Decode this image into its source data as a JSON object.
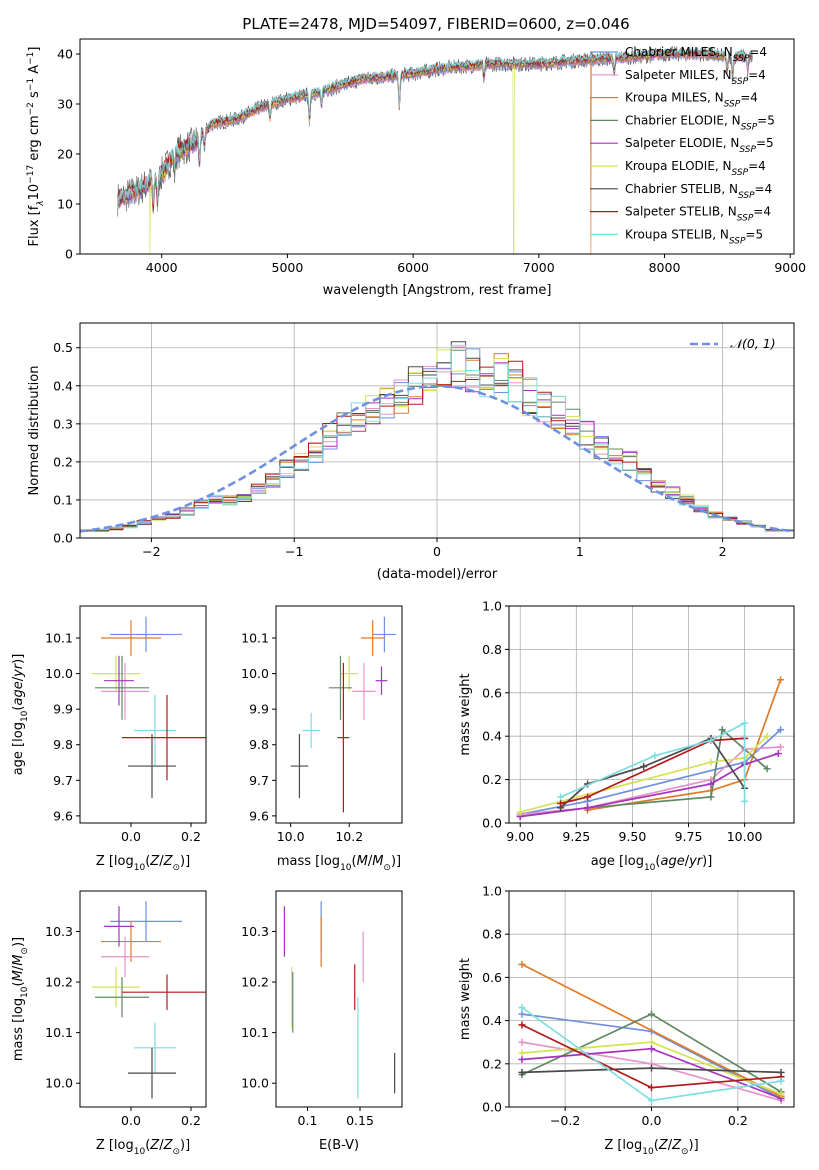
{
  "figure_title": "PLATE=2478, MJD=54097, FIBERID=0600, z=0.046",
  "legend": [
    {
      "label": "Chabrier MILES, N$_{SSP}$=4",
      "text": "Chabrier MILES, N",
      "n": "4",
      "color": "#6f8fe0"
    },
    {
      "label": "Salpeter MILES, N$_{SSP}$=4",
      "text": "Salpeter MILES, N",
      "n": "4",
      "color": "#e693c9"
    },
    {
      "label": "Kroupa MILES, N$_{SSP}$=4",
      "text": "Kroupa MILES, N",
      "n": "4",
      "color": "#e07b29"
    },
    {
      "label": "Chabrier ELODIE, N$_{SSP}$=5",
      "text": "Chabrier ELODIE, N",
      "n": "5",
      "color": "#5f8a63"
    },
    {
      "label": "Salpeter ELODIE, N$_{SSP}$=5",
      "text": "Salpeter ELODIE, N",
      "n": "5",
      "color": "#a632c0"
    },
    {
      "label": "Kroupa ELODIE, N$_{SSP}$=4",
      "text": "Kroupa ELODIE, N",
      "n": "4",
      "color": "#d4e255"
    },
    {
      "label": "Chabrier STELIB, N$_{SSP}$=4",
      "text": "Chabrier STELIB, N",
      "n": "4",
      "color": "#4a4a4a"
    },
    {
      "label": "Salpeter STELIB, N$_{SSP}$=4",
      "text": "Salpeter STELIB, N",
      "n": "4",
      "color": "#b21a1a"
    },
    {
      "label": "Kroupa STELIB, N$_{SSP}$=5",
      "text": "Kroupa STELIB, N",
      "n": "5",
      "color": "#7fdde0"
    }
  ],
  "legend_sub": "SSP",
  "normal_label": "𝒩(0, 1)",
  "chart_data": [
    {
      "id": "spectrum",
      "type": "line",
      "xlabel": "wavelength [Angstrom, rest frame]",
      "ylabel_parts": [
        "Flux [f",
        "λ",
        "10",
        "−17",
        " erg cm",
        "−2",
        " s",
        "−1",
        " A",
        "−1",
        "]"
      ],
      "xlim": [
        3350,
        9030
      ],
      "ylim": [
        0,
        43
      ],
      "xticks": [
        4000,
        5000,
        6000,
        7000,
        8000,
        9000
      ],
      "yticks": [
        0,
        10,
        20,
        30,
        40
      ],
      "continuum": [
        [
          3650,
          11
        ],
        [
          3800,
          12.5
        ],
        [
          3950,
          15
        ],
        [
          4000,
          16
        ],
        [
          4100,
          20
        ],
        [
          4250,
          22
        ],
        [
          4400,
          26
        ],
        [
          4600,
          27
        ],
        [
          4800,
          29.5
        ],
        [
          5000,
          31
        ],
        [
          5200,
          32
        ],
        [
          5400,
          33.5
        ],
        [
          5600,
          35
        ],
        [
          5800,
          35.5
        ],
        [
          6000,
          36
        ],
        [
          6200,
          37
        ],
        [
          6400,
          37.5
        ],
        [
          6600,
          38
        ],
        [
          6800,
          38
        ],
        [
          7000,
          38
        ],
        [
          7200,
          38.5
        ],
        [
          7500,
          39
        ],
        [
          7800,
          39.5
        ],
        [
          8000,
          40
        ],
        [
          8300,
          40
        ],
        [
          8500,
          39.5
        ],
        [
          8700,
          39.5
        ]
      ],
      "features": [
        {
          "x": 3933,
          "depth": 6
        },
        {
          "x": 3968,
          "depth": 6
        },
        {
          "x": 4102,
          "depth": 4
        },
        {
          "x": 4300,
          "depth": 6
        },
        {
          "x": 4340,
          "depth": 3
        },
        {
          "x": 4861,
          "depth": 3
        },
        {
          "x": 5175,
          "depth": 6
        },
        {
          "x": 5270,
          "depth": 3
        },
        {
          "x": 5890,
          "depth": 7
        },
        {
          "x": 6563,
          "depth": 3
        },
        {
          "x": 7600,
          "depth": 3
        },
        {
          "x": 8498,
          "depth": 3
        },
        {
          "x": 8542,
          "depth": 4
        },
        {
          "x": 8662,
          "depth": 3
        }
      ],
      "dropouts": [
        {
          "x": 3905,
          "model": "Kroupa ELODIE"
        },
        {
          "x": 6800,
          "model": "Kroupa ELODIE"
        },
        {
          "x": 7415,
          "model": "Kroupa MILES"
        }
      ]
    },
    {
      "id": "residuals",
      "type": "histogram",
      "xlabel": "(data-model)/error",
      "ylabel": "Normed distribution",
      "xlim": [
        -2.5,
        2.5
      ],
      "ylim": [
        0,
        0.565
      ],
      "xticks": [
        -2,
        -1,
        0,
        1,
        2
      ],
      "yticks": [
        0.0,
        0.1,
        0.2,
        0.3,
        0.4,
        0.5
      ],
      "bin_edges_start": -2.5,
      "bin_width": 0.1,
      "n_bins": 50,
      "heights_ref": [
        0.02,
        0.02,
        0.025,
        0.03,
        0.04,
        0.05,
        0.06,
        0.07,
        0.09,
        0.1,
        0.1,
        0.11,
        0.13,
        0.15,
        0.18,
        0.2,
        0.23,
        0.27,
        0.3,
        0.32,
        0.34,
        0.36,
        0.38,
        0.4,
        0.44,
        0.45,
        0.46,
        0.44,
        0.42,
        0.43,
        0.41,
        0.37,
        0.35,
        0.33,
        0.3,
        0.27,
        0.24,
        0.22,
        0.2,
        0.17,
        0.14,
        0.12,
        0.1,
        0.08,
        0.06,
        0.05,
        0.04,
        0.03,
        0.02,
        0.02
      ]
    },
    {
      "id": "age-vs-Z",
      "type": "errorbar",
      "xlabel": "Z [log10(Z/Z⊙)]",
      "ylabel": "age  [log10(age/yr)]",
      "xlim": [
        -0.17,
        0.25
      ],
      "ylim": [
        9.58,
        10.19
      ],
      "xticks": [
        0.0,
        0.2
      ],
      "yticks": [
        9.6,
        9.7,
        9.8,
        9.9,
        10.0,
        10.1
      ],
      "points": [
        {
          "model": "Chabrier MILES",
          "x": 0.05,
          "xerr": 0.12,
          "y": 10.11,
          "yerr": 0.05
        },
        {
          "model": "Kroupa MILES",
          "x": 0.0,
          "xerr": 0.1,
          "y": 10.1,
          "yerr": 0.05
        },
        {
          "model": "Salpeter MILES",
          "x": -0.02,
          "xerr": 0.08,
          "y": 9.95,
          "yerr": 0.08
        },
        {
          "model": "Kroupa ELODIE",
          "x": -0.05,
          "xerr": 0.08,
          "y": 10.0,
          "yerr": 0.05
        },
        {
          "model": "Chabrier ELODIE",
          "x": -0.03,
          "xerr": 0.09,
          "y": 9.96,
          "yerr": 0.09
        },
        {
          "model": "Salpeter ELODIE",
          "x": -0.04,
          "xerr": 0.05,
          "y": 9.98,
          "yerr": 0.07
        },
        {
          "model": "Kroupa STELIB",
          "x": 0.08,
          "xerr": 0.07,
          "y": 9.84,
          "yerr": 0.1
        },
        {
          "model": "Salpeter STELIB",
          "x": 0.12,
          "xerr": 0.15,
          "y": 9.82,
          "yerr": 0.12
        },
        {
          "model": "Chabrier STELIB",
          "x": 0.07,
          "xerr": 0.08,
          "y": 9.74,
          "yerr": 0.09
        }
      ]
    },
    {
      "id": "age-vs-mass",
      "type": "errorbar",
      "xlabel": "mass [log10(M/M⊙)]",
      "ylabel": "",
      "xlim": [
        9.95,
        10.38
      ],
      "ylim": [
        9.58,
        10.19
      ],
      "xticks": [
        10.0,
        10.2
      ],
      "yticks": [
        9.6,
        9.7,
        9.8,
        9.9,
        10.0,
        10.1
      ],
      "points": [
        {
          "model": "Chabrier MILES",
          "x": 10.32,
          "xerr": 0.04,
          "y": 10.11,
          "yerr": 0.05
        },
        {
          "model": "Kroupa MILES",
          "x": 10.28,
          "xerr": 0.04,
          "y": 10.1,
          "yerr": 0.05
        },
        {
          "model": "Salpeter MILES",
          "x": 10.25,
          "xerr": 0.04,
          "y": 9.95,
          "yerr": 0.08
        },
        {
          "model": "Kroupa ELODIE",
          "x": 10.2,
          "xerr": 0.03,
          "y": 10.0,
          "yerr": 0.05
        },
        {
          "model": "Chabrier ELODIE",
          "x": 10.17,
          "xerr": 0.04,
          "y": 9.96,
          "yerr": 0.09
        },
        {
          "model": "Salpeter ELODIE",
          "x": 10.31,
          "xerr": 0.02,
          "y": 9.98,
          "yerr": 0.04
        },
        {
          "model": "Kroupa STELIB",
          "x": 10.07,
          "xerr": 0.03,
          "y": 9.84,
          "yerr": 0.05
        },
        {
          "model": "Salpeter STELIB",
          "x": 10.18,
          "xerr": 0.02,
          "y": 9.82,
          "yerr": 0.21
        },
        {
          "model": "Chabrier STELIB",
          "x": 10.03,
          "xerr": 0.03,
          "y": 9.74,
          "yerr": 0.09
        }
      ]
    },
    {
      "id": "mass-weight-vs-age",
      "type": "line",
      "xlabel": "age  [log10(age/yr)]",
      "ylabel": "mass weight",
      "xlim": [
        8.95,
        10.22
      ],
      "ylim": [
        0,
        1.0
      ],
      "xticks": [
        9.0,
        9.25,
        9.5,
        9.75,
        10.0
      ],
      "yticks": [
        0.0,
        0.2,
        0.4,
        0.6,
        0.8,
        1.0
      ],
      "series": [
        {
          "model": "Chabrier MILES",
          "x": [
            9.0,
            9.3,
            10.0,
            10.16
          ],
          "y": [
            0.04,
            0.1,
            0.28,
            0.43
          ]
        },
        {
          "model": "Salpeter MILES",
          "x": [
            9.0,
            9.3,
            9.85,
            10.0,
            10.16
          ],
          "y": [
            0.04,
            0.07,
            0.2,
            0.34,
            0.35
          ]
        },
        {
          "model": "Kroupa MILES",
          "x": [
            9.3,
            9.85,
            10.0,
            10.16
          ],
          "y": [
            0.06,
            0.15,
            0.2,
            0.66
          ]
        },
        {
          "model": "Chabrier ELODIE",
          "x": [
            9.0,
            9.3,
            9.85,
            9.9,
            10.1
          ],
          "y": [
            0.03,
            0.07,
            0.12,
            0.43,
            0.25
          ]
        },
        {
          "model": "Salpeter ELODIE",
          "x": [
            9.0,
            9.3,
            9.85,
            10.0,
            10.15
          ],
          "y": [
            0.03,
            0.07,
            0.18,
            0.27,
            0.32
          ]
        },
        {
          "model": "Kroupa ELODIE",
          "x": [
            9.0,
            9.85,
            10.0,
            10.1
          ],
          "y": [
            0.05,
            0.28,
            0.3,
            0.4
          ]
        },
        {
          "model": "Chabrier STELIB",
          "x": [
            9.18,
            9.3,
            9.55,
            9.85,
            10.0
          ],
          "y": [
            0.07,
            0.18,
            0.26,
            0.39,
            0.16
          ]
        },
        {
          "model": "Salpeter STELIB",
          "x": [
            9.18,
            9.3,
            9.85,
            10.0
          ],
          "y": [
            0.09,
            0.12,
            0.38,
            0.39
          ]
        },
        {
          "model": "Kroupa STELIB",
          "x": [
            9.18,
            9.6,
            9.85,
            10.0,
            10.0
          ],
          "y": [
            0.12,
            0.31,
            0.38,
            0.46,
            0.1
          ]
        }
      ]
    },
    {
      "id": "mass-vs-Z",
      "type": "errorbar",
      "xlabel": "Z [log10(Z/Z⊙)]",
      "ylabel": "mass [log10(M/M⊙)]",
      "xlim": [
        -0.17,
        0.25
      ],
      "ylim": [
        9.953,
        10.38
      ],
      "xticks": [
        0.0,
        0.2
      ],
      "yticks": [
        10.0,
        10.1,
        10.2,
        10.3
      ],
      "points": [
        {
          "model": "Chabrier MILES",
          "x": 0.05,
          "xerr": 0.12,
          "y": 10.32,
          "yerr": 0.04
        },
        {
          "model": "Kroupa MILES",
          "x": 0.0,
          "xerr": 0.1,
          "y": 10.28,
          "yerr": 0.04
        },
        {
          "model": "Salpeter MILES",
          "x": -0.02,
          "xerr": 0.08,
          "y": 10.25,
          "yerr": 0.04
        },
        {
          "model": "Salpeter ELODIE",
          "x": -0.04,
          "xerr": 0.05,
          "y": 10.31,
          "yerr": 0.04
        },
        {
          "model": "Kroupa ELODIE",
          "x": -0.05,
          "xerr": 0.08,
          "y": 10.19,
          "yerr": 0.04
        },
        {
          "model": "Chabrier ELODIE",
          "x": -0.03,
          "xerr": 0.09,
          "y": 10.17,
          "yerr": 0.04
        },
        {
          "model": "Salpeter STELIB",
          "x": 0.12,
          "xerr": 0.15,
          "y": 10.18,
          "yerr": 0.035
        },
        {
          "model": "Kroupa STELIB",
          "x": 0.08,
          "xerr": 0.07,
          "y": 10.07,
          "yerr": 0.05
        },
        {
          "model": "Chabrier STELIB",
          "x": 0.07,
          "xerr": 0.08,
          "y": 10.02,
          "yerr": 0.05
        }
      ]
    },
    {
      "id": "mass-vs-EBV",
      "type": "errorbar",
      "xlabel": "E(B-V)",
      "ylabel": "",
      "xlim": [
        0.07,
        0.19
      ],
      "ylim": [
        9.953,
        10.38
      ],
      "xticks": [
        0.1,
        0.15
      ],
      "yticks": [
        10.0,
        10.1,
        10.2,
        10.3
      ],
      "points": [
        {
          "model": "Salpeter ELODIE",
          "x": 0.078,
          "xerr": 0.0,
          "y": 10.3,
          "yerr": 0.05
        },
        {
          "model": "Kroupa ELODIE",
          "x": 0.085,
          "xerr": 0.0,
          "y": 10.17,
          "yerr": 0.06
        },
        {
          "model": "Chabrier ELODIE",
          "x": 0.086,
          "xerr": 0.0,
          "y": 10.16,
          "yerr": 0.06
        },
        {
          "model": "Chabrier MILES",
          "x": 0.113,
          "xerr": 0.0,
          "y": 10.31,
          "yerr": 0.05
        },
        {
          "model": "Kroupa MILES",
          "x": 0.113,
          "xerr": 0.0,
          "y": 10.28,
          "yerr": 0.05
        },
        {
          "model": "Salpeter STELIB",
          "x": 0.145,
          "xerr": 0.0,
          "y": 10.19,
          "yerr": 0.045
        },
        {
          "model": "Kroupa STELIB",
          "x": 0.148,
          "xerr": 0.0,
          "y": 10.07,
          "yerr": 0.1
        },
        {
          "model": "Salpeter MILES",
          "x": 0.153,
          "xerr": 0.0,
          "y": 10.25,
          "yerr": 0.05
        },
        {
          "model": "Chabrier STELIB",
          "x": 0.183,
          "xerr": 0.0,
          "y": 10.02,
          "yerr": 0.04
        }
      ]
    },
    {
      "id": "mass-weight-vs-Z",
      "type": "line",
      "xlabel": "Z [log10(Z/Z⊙)]",
      "ylabel": "mass weight",
      "xlim": [
        -0.33,
        0.33
      ],
      "ylim": [
        0,
        1.0
      ],
      "xticks": [
        -0.2,
        0.0,
        0.2
      ],
      "yticks": [
        0.0,
        0.2,
        0.4,
        0.6,
        0.8,
        1.0
      ],
      "series": [
        {
          "model": "Chabrier MILES",
          "x": [
            -0.3,
            0.0,
            0.3
          ],
          "y": [
            0.43,
            0.35,
            0.04
          ]
        },
        {
          "model": "Salpeter MILES",
          "x": [
            -0.3,
            0.0,
            0.3
          ],
          "y": [
            0.3,
            0.2,
            0.03
          ]
        },
        {
          "model": "Kroupa MILES",
          "x": [
            -0.3,
            0.3
          ],
          "y": [
            0.66,
            0.05
          ]
        },
        {
          "model": "Chabrier ELODIE",
          "x": [
            -0.3,
            0.0,
            0.3
          ],
          "y": [
            0.15,
            0.43,
            0.07
          ]
        },
        {
          "model": "Salpeter ELODIE",
          "x": [
            -0.3,
            0.0,
            0.3
          ],
          "y": [
            0.22,
            0.27,
            0.04
          ]
        },
        {
          "model": "Kroupa ELODIE",
          "x": [
            -0.3,
            0.0,
            0.3
          ],
          "y": [
            0.25,
            0.3,
            0.06
          ]
        },
        {
          "model": "Chabrier STELIB",
          "x": [
            -0.3,
            0.0,
            0.3
          ],
          "y": [
            0.16,
            0.18,
            0.16
          ]
        },
        {
          "model": "Salpeter STELIB",
          "x": [
            -0.3,
            0.0,
            0.3
          ],
          "y": [
            0.38,
            0.09,
            0.14
          ]
        },
        {
          "model": "Kroupa STELIB",
          "x": [
            -0.3,
            0.0,
            0.3
          ],
          "y": [
            0.46,
            0.03,
            0.12
          ]
        }
      ]
    }
  ]
}
